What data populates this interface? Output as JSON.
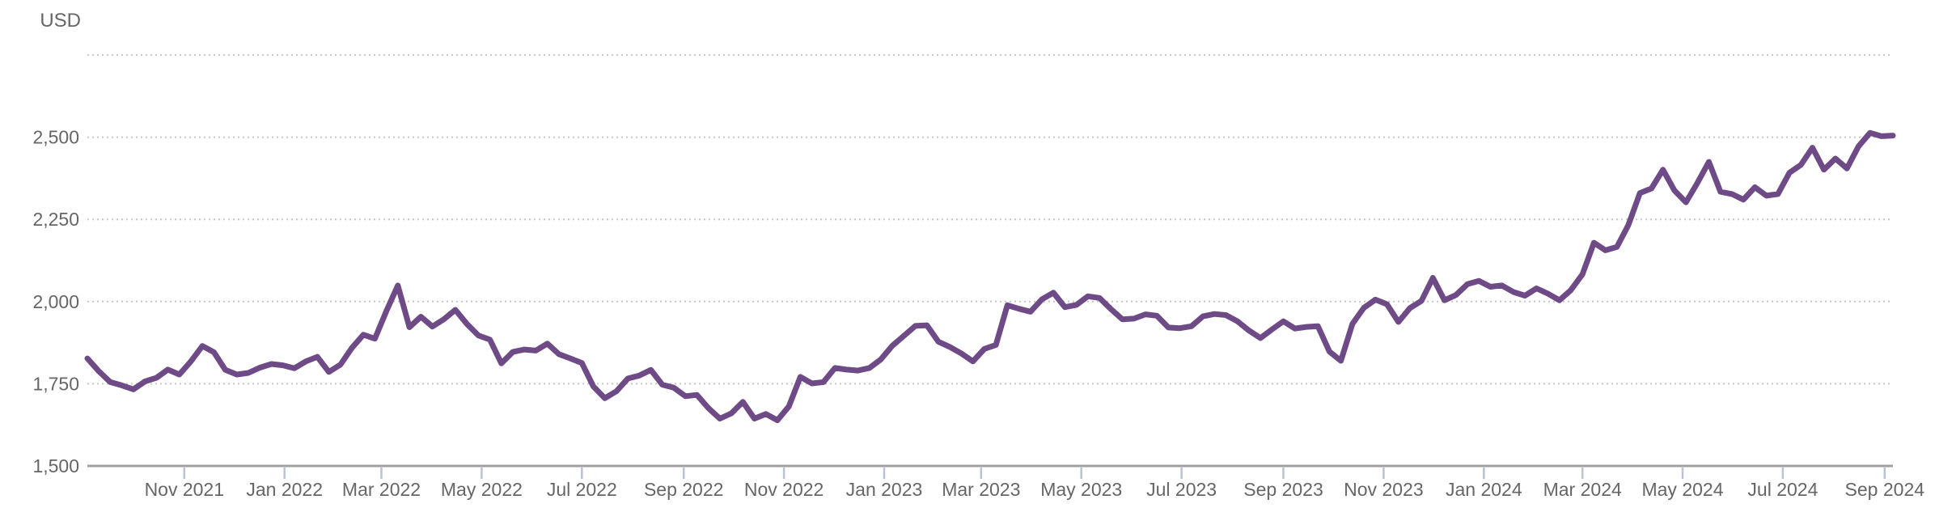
{
  "chart_data": {
    "type": "line",
    "ylabel": "USD",
    "title": "",
    "legend": "none",
    "grid": "dotted-horizontal",
    "ylim": [
      1500,
      2750
    ],
    "grid_values": [
      1750,
      2000,
      2250,
      2500,
      2750
    ],
    "y_tick_labels": [
      "1,500",
      "1,750",
      "2,000",
      "2,250",
      "2,500"
    ],
    "y_tick_values": [
      1500,
      1750,
      2000,
      2250,
      2500
    ],
    "x_tick_labels": [
      "Nov 2021",
      "Jan 2022",
      "Mar 2022",
      "May 2022",
      "Jul 2022",
      "Sep 2022",
      "Nov 2022",
      "Jan 2023",
      "Mar 2023",
      "May 2023",
      "Jul 2023",
      "Sep 2023",
      "Nov 2023",
      "Jan 2024",
      "Mar 2024",
      "May 2024",
      "Jul 2024",
      "Sep 2024"
    ],
    "x": [
      "2021-09-03",
      "2021-09-10",
      "2021-09-17",
      "2021-09-24",
      "2021-10-01",
      "2021-10-08",
      "2021-10-15",
      "2021-10-22",
      "2021-10-29",
      "2021-11-05",
      "2021-11-12",
      "2021-11-19",
      "2021-11-26",
      "2021-12-03",
      "2021-12-10",
      "2021-12-17",
      "2021-12-24",
      "2021-12-31",
      "2022-01-07",
      "2022-01-14",
      "2022-01-21",
      "2022-01-28",
      "2022-02-04",
      "2022-02-11",
      "2022-02-18",
      "2022-02-25",
      "2022-03-04",
      "2022-03-11",
      "2022-03-18",
      "2022-03-25",
      "2022-04-01",
      "2022-04-08",
      "2022-04-15",
      "2022-04-22",
      "2022-04-29",
      "2022-05-06",
      "2022-05-13",
      "2022-05-20",
      "2022-05-27",
      "2022-06-03",
      "2022-06-10",
      "2022-06-17",
      "2022-06-24",
      "2022-07-01",
      "2022-07-08",
      "2022-07-15",
      "2022-07-22",
      "2022-07-29",
      "2022-08-05",
      "2022-08-12",
      "2022-08-19",
      "2022-08-26",
      "2022-09-02",
      "2022-09-09",
      "2022-09-16",
      "2022-09-23",
      "2022-09-30",
      "2022-10-07",
      "2022-10-14",
      "2022-10-21",
      "2022-10-28",
      "2022-11-04",
      "2022-11-11",
      "2022-11-18",
      "2022-11-25",
      "2022-12-02",
      "2022-12-09",
      "2022-12-16",
      "2022-12-23",
      "2022-12-30",
      "2023-01-06",
      "2023-01-13",
      "2023-01-20",
      "2023-01-27",
      "2023-02-03",
      "2023-02-10",
      "2023-02-17",
      "2023-02-24",
      "2023-03-03",
      "2023-03-10",
      "2023-03-17",
      "2023-03-24",
      "2023-03-31",
      "2023-04-07",
      "2023-04-14",
      "2023-04-21",
      "2023-04-28",
      "2023-05-05",
      "2023-05-12",
      "2023-05-19",
      "2023-05-26",
      "2023-06-02",
      "2023-06-09",
      "2023-06-16",
      "2023-06-23",
      "2023-06-30",
      "2023-07-07",
      "2023-07-14",
      "2023-07-21",
      "2023-07-28",
      "2023-08-04",
      "2023-08-11",
      "2023-08-18",
      "2023-08-25",
      "2023-09-01",
      "2023-09-08",
      "2023-09-15",
      "2023-09-22",
      "2023-09-29",
      "2023-10-06",
      "2023-10-13",
      "2023-10-20",
      "2023-10-27",
      "2023-11-03",
      "2023-11-10",
      "2023-11-17",
      "2023-11-24",
      "2023-12-01",
      "2023-12-08",
      "2023-12-15",
      "2023-12-22",
      "2023-12-29",
      "2024-01-05",
      "2024-01-12",
      "2024-01-19",
      "2024-01-26",
      "2024-02-02",
      "2024-02-09",
      "2024-02-16",
      "2024-02-23",
      "2024-03-01",
      "2024-03-08",
      "2024-03-15",
      "2024-03-22",
      "2024-03-29",
      "2024-04-05",
      "2024-04-12",
      "2024-04-19",
      "2024-04-26",
      "2024-05-03",
      "2024-05-10",
      "2024-05-17",
      "2024-05-24",
      "2024-05-31",
      "2024-06-07",
      "2024-06-14",
      "2024-06-21",
      "2024-06-28",
      "2024-07-05",
      "2024-07-12",
      "2024-07-19",
      "2024-07-26",
      "2024-08-02",
      "2024-08-09",
      "2024-08-16",
      "2024-08-23",
      "2024-08-30",
      "2024-09-06"
    ],
    "values": [
      1827,
      1788,
      1755,
      1745,
      1733,
      1757,
      1768,
      1793,
      1778,
      1818,
      1865,
      1846,
      1792,
      1778,
      1783,
      1799,
      1810,
      1806,
      1797,
      1818,
      1832,
      1786,
      1808,
      1859,
      1899,
      1887,
      1971,
      2049,
      1922,
      1954,
      1924,
      1946,
      1975,
      1932,
      1897,
      1884,
      1812,
      1847,
      1854,
      1851,
      1872,
      1840,
      1827,
      1813,
      1742,
      1706,
      1727,
      1766,
      1775,
      1792,
      1747,
      1738,
      1712,
      1716,
      1676,
      1644,
      1660,
      1695,
      1644,
      1658,
      1639,
      1681,
      1771,
      1751,
      1755,
      1798,
      1793,
      1790,
      1798,
      1824,
      1866,
      1896,
      1926,
      1928,
      1878,
      1862,
      1842,
      1818,
      1856,
      1868,
      1989,
      1978,
      1969,
      2007,
      2027,
      1983,
      1990,
      2016,
      2011,
      1977,
      1946,
      1948,
      1961,
      1957,
      1921,
      1919,
      1925,
      1955,
      1962,
      1959,
      1940,
      1912,
      1889,
      1915,
      1940,
      1918,
      1923,
      1925,
      1848,
      1820,
      1932,
      1981,
      2006,
      1992,
      1938,
      1980,
      2002,
      2072,
      2004,
      2020,
      2053,
      2063,
      2045,
      2049,
      2029,
      2018,
      2040,
      2024,
      2004,
      2035,
      2083,
      2179,
      2156,
      2166,
      2233,
      2330,
      2344,
      2401,
      2338,
      2302,
      2361,
      2425,
      2334,
      2327,
      2310,
      2348,
      2322,
      2327,
      2392,
      2416,
      2468,
      2401,
      2435,
      2405,
      2472,
      2513,
      2503,
      2505
    ]
  },
  "colors": {
    "line": "#6e4b87",
    "axis_line": "#a0a0a0",
    "gridline": "#c6c6c6",
    "tick_mark": "#b9c3d4",
    "label_text": "#666666",
    "background": "#ffffff"
  }
}
